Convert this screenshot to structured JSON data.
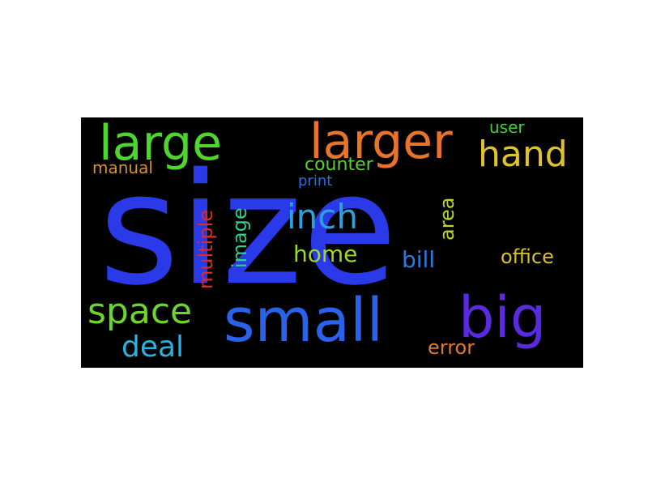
{
  "word_cloud": {
    "background_color": "#000000",
    "words": [
      {
        "id": "size",
        "text": "size",
        "color": "#2a3ae8",
        "rotated": false
      },
      {
        "id": "large",
        "text": "large",
        "color": "#4dd62e",
        "rotated": false
      },
      {
        "id": "larger",
        "text": "larger",
        "color": "#e8742a",
        "rotated": false
      },
      {
        "id": "hand",
        "text": "hand",
        "color": "#e0c22a",
        "rotated": false
      },
      {
        "id": "user",
        "text": "user",
        "color": "#3dd22e",
        "rotated": false
      },
      {
        "id": "manual",
        "text": "manual",
        "color": "#d9902a",
        "rotated": false
      },
      {
        "id": "counter",
        "text": "counter",
        "color": "#5ad12e",
        "rotated": false
      },
      {
        "id": "print",
        "text": "print",
        "color": "#2e6ae0",
        "rotated": false
      },
      {
        "id": "inch",
        "text": "inch",
        "color": "#2ea0e0",
        "rotated": false
      },
      {
        "id": "multiple",
        "text": "multiple",
        "color": "#e02a22",
        "rotated": true
      },
      {
        "id": "image",
        "text": "image",
        "color": "#2ed08a",
        "rotated": true
      },
      {
        "id": "area",
        "text": "area",
        "color": "#b8d82a",
        "rotated": true
      },
      {
        "id": "home",
        "text": "home",
        "color": "#9ad82a",
        "rotated": false
      },
      {
        "id": "bill",
        "text": "bill",
        "color": "#2a7ae0",
        "rotated": false
      },
      {
        "id": "office",
        "text": "office",
        "color": "#d8c22a",
        "rotated": false
      },
      {
        "id": "space",
        "text": "space",
        "color": "#6ad62e",
        "rotated": false
      },
      {
        "id": "small",
        "text": "small",
        "color": "#2a62ea",
        "rotated": false
      },
      {
        "id": "big",
        "text": "big",
        "color": "#5a2ae0",
        "rotated": false
      },
      {
        "id": "deal",
        "text": "deal",
        "color": "#2ab2e0",
        "rotated": false
      },
      {
        "id": "error",
        "text": "error",
        "color": "#e07a2a",
        "rotated": false
      }
    ]
  }
}
